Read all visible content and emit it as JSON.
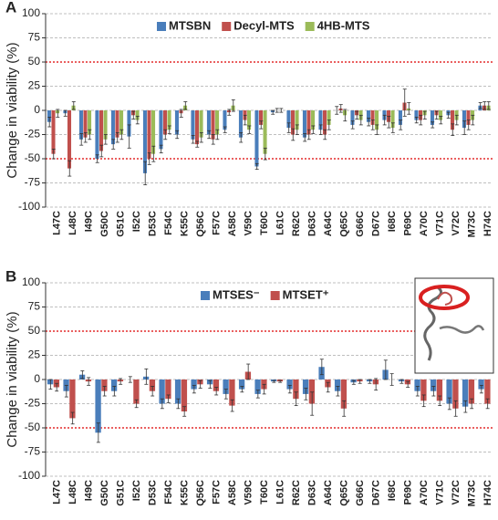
{
  "chart_data": [
    {
      "type": "bar",
      "panel_label": "A",
      "y_label": "Change in viability (%)",
      "categories": [
        "L47C",
        "L48C",
        "I49C",
        "G50C",
        "G51C",
        "I52C",
        "D53C",
        "F54C",
        "K55C",
        "Q56C",
        "F57C",
        "A58C",
        "V59C",
        "T60C",
        "L61C",
        "R62C",
        "D63C",
        "A64C",
        "Q65C",
        "G66C",
        "D67C",
        "I68C",
        "P69C",
        "A70C",
        "V71C",
        "V72C",
        "M73C",
        "H74C"
      ],
      "series": [
        {
          "name": "MTSBN",
          "color": "#4a7ebb",
          "values": [
            -12,
            -3,
            -30,
            -50,
            -35,
            -27,
            -65,
            -40,
            -25,
            -30,
            -25,
            -20,
            -28,
            -58,
            -2,
            -18,
            -28,
            -20,
            0,
            -15,
            -12,
            -10,
            -15,
            -10,
            -15,
            -5,
            -18,
            5
          ],
          "errors": [
            5,
            3,
            6,
            4,
            5,
            12,
            12,
            4,
            4,
            4,
            4,
            3,
            5,
            3,
            2,
            5,
            4,
            5,
            4,
            4,
            4,
            5,
            5,
            3,
            3,
            3,
            7,
            3
          ]
        },
        {
          "name": "Decyl-MTS",
          "color": "#c0504d",
          "values": [
            -45,
            -60,
            -28,
            -42,
            -28,
            -5,
            -50,
            -25,
            -3,
            -35,
            -30,
            -2,
            -10,
            -15,
            0,
            -25,
            -25,
            -25,
            2,
            -5,
            -15,
            -12,
            8,
            -10,
            -5,
            -20,
            -15,
            5
          ],
          "errors": [
            5,
            8,
            5,
            6,
            5,
            4,
            6,
            5,
            4,
            3,
            5,
            3,
            5,
            4,
            2,
            6,
            5,
            5,
            4,
            4,
            5,
            6,
            14,
            5,
            4,
            6,
            5,
            4
          ]
        },
        {
          "name": "4HB-MTS",
          "color": "#9bbb59",
          "values": [
            -3,
            5,
            -25,
            -30,
            -25,
            -10,
            -45,
            -20,
            5,
            -28,
            -25,
            5,
            -20,
            -45,
            0,
            -20,
            -20,
            -15,
            -5,
            -10,
            -20,
            -18,
            2,
            -5,
            -10,
            -10,
            -10,
            5
          ],
          "errors": [
            4,
            4,
            5,
            5,
            5,
            4,
            8,
            4,
            4,
            5,
            5,
            6,
            4,
            6,
            2,
            5,
            4,
            5,
            6,
            5,
            5,
            5,
            6,
            4,
            4,
            5,
            5,
            4
          ]
        }
      ],
      "ylim": [
        -100,
        100
      ],
      "yticks": [
        -100,
        -75,
        -50,
        -25,
        0,
        25,
        50,
        75,
        100
      ],
      "reference_lines": [
        -50,
        50
      ],
      "grid": true,
      "legend": "top"
    },
    {
      "type": "bar",
      "panel_label": "B",
      "y_label": "Change in viability (%)",
      "categories": [
        "L47C",
        "L48C",
        "I49C",
        "G50C",
        "G51C",
        "I52C",
        "D53C",
        "F54C",
        "K55C",
        "Q56C",
        "F57C",
        "A58C",
        "V59C",
        "T60C",
        "L61C",
        "R62C",
        "D63C",
        "A64C",
        "Q65C",
        "G66C",
        "D67C",
        "I68C",
        "P69C",
        "A70C",
        "V71C",
        "V72C",
        "M73C",
        "H74C"
      ],
      "series": [
        {
          "name": "MTSES⁻",
          "color": "#4a7ebb",
          "values": [
            -5,
            -12,
            5,
            -55,
            -12,
            0,
            3,
            -25,
            -25,
            -10,
            -5,
            -15,
            -10,
            -15,
            -2,
            -10,
            -15,
            13,
            -12,
            -3,
            -2,
            10,
            -2,
            -12,
            -12,
            -25,
            -28,
            -10
          ],
          "errors": [
            5,
            6,
            4,
            10,
            5,
            3,
            8,
            5,
            5,
            4,
            4,
            5,
            3,
            4,
            1,
            4,
            6,
            8,
            5,
            2,
            2,
            10,
            2,
            5,
            5,
            6,
            6,
            4
          ]
        },
        {
          "name": "MTSET⁺",
          "color": "#c0504d",
          "values": [
            -8,
            -40,
            -2,
            -12,
            -2,
            -25,
            -12,
            -20,
            -33,
            -5,
            -12,
            -27,
            8,
            -10,
            -2,
            -20,
            -25,
            -8,
            -30,
            -2,
            -5,
            0,
            -5,
            -22,
            -22,
            -30,
            -25,
            -25
          ],
          "errors": [
            4,
            6,
            4,
            5,
            3,
            4,
            5,
            4,
            5,
            4,
            4,
            6,
            8,
            5,
            1,
            7,
            12,
            5,
            8,
            2,
            6,
            6,
            3,
            6,
            5,
            8,
            5,
            5
          ]
        }
      ],
      "ylim": [
        -100,
        100
      ],
      "yticks": [
        -100,
        -75,
        -50,
        -25,
        0,
        25,
        50,
        75,
        100
      ],
      "reference_lines": [
        -50,
        50
      ],
      "grid": true,
      "legend": "top"
    }
  ]
}
